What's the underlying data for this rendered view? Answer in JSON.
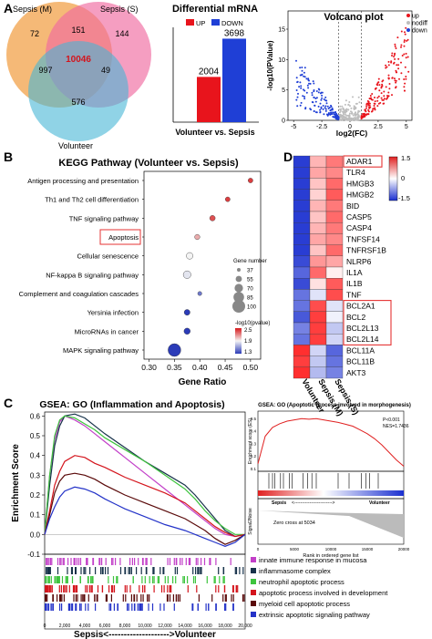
{
  "colors": {
    "up": "#e8141c",
    "down": "#1f3fd6",
    "nodiff": "#bdbdbd",
    "venn_m": "#f2a24a",
    "venn_s": "#f06aa0",
    "venn_v": "#46b6d6",
    "highlight": "#e53333",
    "heat_high": "#e02020",
    "heat_mid": "#ffffff",
    "heat_low": "#1a2fd0"
  },
  "panel_labels": [
    "A",
    "B",
    "C",
    "D"
  ],
  "venn": {
    "sets": [
      "Sepsis (M)",
      "Sepsis (S)",
      "Volunteer"
    ],
    "regions": {
      "m_only": "72",
      "s_only": "144",
      "v_only": "576",
      "m_s": "151",
      "m_v": "997",
      "s_v": "49",
      "all": "10046"
    }
  },
  "chart_data": [
    {
      "type": "bar",
      "title": "Differential mRNA",
      "categories": [
        "Volunteer vs. Sepsis"
      ],
      "series": [
        {
          "name": "UP",
          "values": [
            2004
          ]
        },
        {
          "name": "DOWN",
          "values": [
            3698
          ]
        }
      ],
      "ylim": [
        0,
        4200
      ]
    },
    {
      "type": "scatter",
      "title": "Volcano plot",
      "xlabel": "log2(FC)",
      "ylabel": "-log10(PValue)",
      "xlim": [
        -5.5,
        5.5
      ],
      "ylim": [
        0,
        18
      ],
      "xticks": [
        "-5",
        "-2.5",
        "0",
        "2.5",
        "5"
      ],
      "yticks": [
        "0",
        "5",
        "10",
        "15"
      ],
      "legend": [
        "up",
        "nodiff",
        "down"
      ],
      "legend_position": "top-right",
      "thresholds": {
        "log2fc": [
          -1,
          1
        ]
      }
    },
    {
      "type": "scatter",
      "title": "KEGG Pathway (Volunteer vs. Sepsis)",
      "xlabel": "Gene Ratio",
      "xlim": [
        0.29,
        0.52
      ],
      "xticks": [
        "0.30",
        "0.35",
        "0.40",
        "0.45",
        "0.50"
      ],
      "categories": [
        "Antigen processing and presentation",
        "Th1 and Th2 cell differentiation",
        "TNF signaling pathway",
        "Apoptosis",
        "Cellular senescence",
        "NF-kappa B signaling pathway",
        "Complement and coagulation cascades",
        "Yersinia infection",
        "MicroRNAs in cancer",
        "MAPK signaling pathway"
      ],
      "gene_ratio": [
        0.5,
        0.455,
        0.425,
        0.395,
        0.38,
        0.375,
        0.4,
        0.375,
        0.375,
        0.35
      ],
      "gene_number": [
        45,
        45,
        50,
        48,
        58,
        65,
        40,
        52,
        55,
        100
      ],
      "log10p": [
        2.4,
        2.4,
        2.35,
        2.1,
        1.9,
        1.85,
        1.5,
        1.3,
        1.3,
        1.3
      ],
      "highlight": "Apoptosis",
      "size_legend_title": "Gene number",
      "size_legend": [
        37,
        55,
        70,
        85,
        100
      ],
      "color_legend_title": "-log10(pvalue)",
      "color_legend_ticks": [
        "2.5",
        "1.9",
        "1.3"
      ]
    },
    {
      "type": "line",
      "title": "GSEA: GO (Inflammation and Apoptosis)",
      "ylabel": "Enrichment Score",
      "xlabel": "Sepsis<-------------------->Volunteer",
      "xlim": [
        0,
        20000
      ],
      "ylim": [
        -0.1,
        0.62
      ],
      "xticks": [
        "0",
        "2,000",
        "4,000",
        "6,000",
        "8,000",
        "10,000",
        "12,000",
        "14,000",
        "16,000",
        "18,000",
        "20,000"
      ],
      "yticks": [
        "-0.1",
        "0.0",
        "0.1",
        "0.2",
        "0.3",
        "0.4",
        "0.5",
        "0.6"
      ],
      "x": [
        0,
        500,
        1000,
        1500,
        2000,
        3000,
        4000,
        5000,
        6000,
        8000,
        10000,
        12000,
        14000,
        15000,
        16000,
        17000,
        18000,
        19000,
        20000
      ],
      "series": [
        {
          "name": "innate immune response in mucosa",
          "color": "#c23fc8",
          "values": [
            0,
            0.3,
            0.48,
            0.57,
            0.6,
            0.58,
            0.55,
            0.51,
            0.47,
            0.39,
            0.31,
            0.23,
            0.15,
            0.11,
            0.07,
            0.03,
            0.0,
            -0.01,
            0.0
          ]
        },
        {
          "name": "inflammasome complex",
          "color": "#17324a",
          "values": [
            0,
            0.25,
            0.45,
            0.55,
            0.6,
            0.61,
            0.59,
            0.55,
            0.51,
            0.44,
            0.37,
            0.31,
            0.25,
            0.2,
            0.14,
            0.08,
            0.02,
            -0.01,
            0.0
          ]
        },
        {
          "name": "neutrophil apoptotic process",
          "color": "#3ec43e",
          "values": [
            0,
            0.3,
            0.5,
            0.58,
            0.6,
            0.59,
            0.56,
            0.53,
            0.49,
            0.43,
            0.37,
            0.3,
            0.23,
            0.18,
            0.12,
            0.07,
            0.03,
            0.0,
            0.0
          ]
        },
        {
          "name": "apoptotic process involved in development",
          "color": "#d4141c",
          "values": [
            0,
            0.12,
            0.25,
            0.32,
            0.37,
            0.4,
            0.39,
            0.36,
            0.34,
            0.29,
            0.25,
            0.21,
            0.16,
            0.12,
            0.08,
            0.04,
            0.01,
            -0.01,
            0.0
          ]
        },
        {
          "name": "myeloid cell apoptotic process",
          "color": "#5a0a0a",
          "values": [
            0,
            0.1,
            0.21,
            0.27,
            0.3,
            0.31,
            0.3,
            0.28,
            0.25,
            0.2,
            0.16,
            0.12,
            0.08,
            0.05,
            0.02,
            -0.02,
            -0.05,
            -0.03,
            0.0
          ]
        },
        {
          "name": "extrinsic apoptotic signaling pathway",
          "color": "#2433c8",
          "values": [
            0,
            0.08,
            0.14,
            0.19,
            0.22,
            0.24,
            0.23,
            0.21,
            0.18,
            0.13,
            0.09,
            0.05,
            0.02,
            0.0,
            -0.02,
            -0.04,
            -0.06,
            -0.04,
            0.0
          ]
        }
      ]
    },
    {
      "type": "line",
      "title": "GSEA: GO (Apoptotic process involved in morphogenesis)",
      "ylabel": "Enrichment score (ES)",
      "xlabel": "Rank in ordered gene list",
      "stats": [
        "P<0.001",
        "NES=1.7436"
      ],
      "zero_cross": "Zero cross at 5034",
      "xticks": [
        "0",
        "5000",
        "10000",
        "15000",
        "20000"
      ],
      "yticks": [
        "0.1",
        "0.2",
        "0.3",
        "0.4",
        "0.5"
      ],
      "ylim": [
        0.08,
        0.56
      ],
      "x": [
        0,
        1000,
        2000,
        3000,
        4000,
        5000,
        6000,
        7000,
        8000,
        9000,
        10000,
        11000,
        12000,
        13000,
        14000,
        15000,
        16000,
        17000,
        18000,
        19000,
        20000
      ],
      "values": [
        0.14,
        0.36,
        0.43,
        0.46,
        0.48,
        0.49,
        0.5,
        0.495,
        0.5,
        0.49,
        0.48,
        0.47,
        0.455,
        0.44,
        0.41,
        0.38,
        0.34,
        0.29,
        0.23,
        0.17,
        0.12
      ],
      "phenotypes": [
        "Sepsis",
        "Volunteer"
      ],
      "metric_ylabel": "Signal2Noise"
    },
    {
      "type": "heatmap",
      "columns": [
        "Volunteer",
        "Sepsis (M)",
        "Sepsis (S)"
      ],
      "rows": [
        "ADAR1",
        "TLR4",
        "HMGB3",
        "HMGB2",
        "BID",
        "CASP5",
        "CASP4",
        "TNFSF14",
        "TNFRSF1B",
        "NLRP6",
        "IL1A",
        "IL1B",
        "TNF",
        "BCL2A1",
        "BCL2",
        "BCL2L13",
        "BCL2L14",
        "BCL11A",
        "BCL11B",
        "AKT3"
      ],
      "values": [
        [
          -1.4,
          0.5,
          0.9
        ],
        [
          -1.4,
          0.6,
          0.8
        ],
        [
          -1.4,
          0.4,
          1.0
        ],
        [
          -1.4,
          0.3,
          1.1
        ],
        [
          -1.4,
          0.5,
          0.9
        ],
        [
          -1.4,
          0.4,
          1.0
        ],
        [
          -1.4,
          0.5,
          0.9
        ],
        [
          -1.4,
          0.6,
          0.8
        ],
        [
          -1.4,
          0.4,
          1.0
        ],
        [
          -1.3,
          0.7,
          0.6
        ],
        [
          -1.1,
          1.0,
          0.1
        ],
        [
          -1.3,
          0.2,
          1.1
        ],
        [
          -1.0,
          -0.2,
          1.2
        ],
        [
          -1.0,
          1.2,
          -0.2
        ],
        [
          -1.2,
          1.3,
          -0.1
        ],
        [
          -0.9,
          1.3,
          -0.4
        ],
        [
          -1.0,
          1.3,
          -0.3
        ],
        [
          1.4,
          -0.3,
          -1.1
        ],
        [
          1.3,
          -0.4,
          -1.0
        ],
        [
          1.4,
          -0.5,
          -0.9
        ]
      ],
      "highlighted_rows": [
        "ADAR1",
        "BCL2A1",
        "BCL2",
        "BCL2L13",
        "BCL2L14"
      ],
      "scale_ticks": [
        "1.5",
        "0",
        "-1.5"
      ]
    }
  ]
}
